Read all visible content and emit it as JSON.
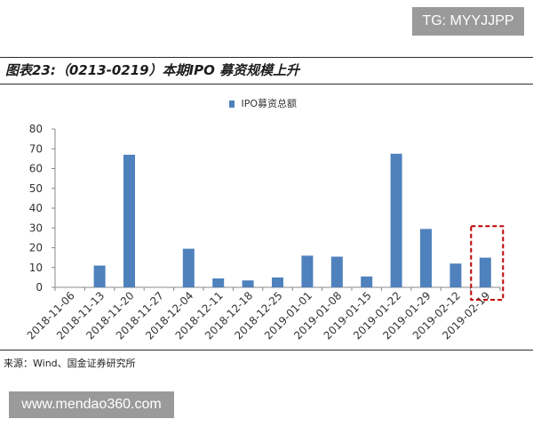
{
  "watermark_top": "TG: MYYJJPP",
  "watermark_bottom": "www.mendao360.com",
  "figure_title": "图表23:（0213-0219）本期IPO 募资规模上升",
  "source": "来源：Wind、国金证券研究所",
  "chart_data": {
    "type": "bar",
    "title": "",
    "xlabel": "",
    "ylabel": "",
    "ylim": [
      0,
      80
    ],
    "yticks": [
      0,
      10,
      20,
      30,
      40,
      50,
      60,
      70,
      80
    ],
    "grid": false,
    "legend_position": "top-center",
    "categories": [
      "2018-11-06",
      "2018-11-13",
      "2018-11-20",
      "2018-11-27",
      "2018-12-04",
      "2018-12-11",
      "2018-12-18",
      "2018-12-25",
      "2019-01-01",
      "2019-01-08",
      "2019-01-15",
      "2019-01-22",
      "2019-01-29",
      "2019-02-12",
      "2019-02-19"
    ],
    "series": [
      {
        "name": "IPO募资总额",
        "color": "#4f81bd",
        "values": [
          0,
          11,
          67,
          0,
          19.5,
          4.5,
          3.5,
          5,
          16,
          15.5,
          5.5,
          67.5,
          29.5,
          12,
          15
        ]
      }
    ],
    "highlight": {
      "category": "2019-02-19",
      "style": "red dashed box",
      "color": "#c00000"
    }
  }
}
